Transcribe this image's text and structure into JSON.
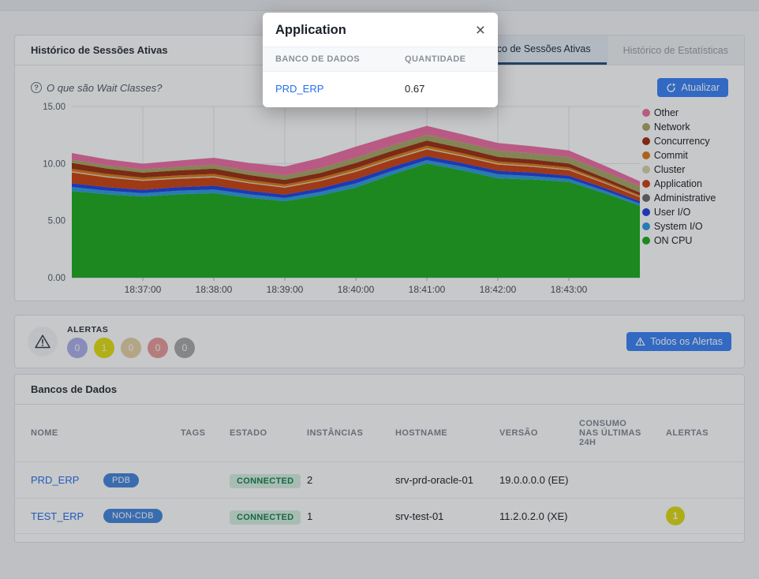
{
  "modal": {
    "title": "Application",
    "close_icon": "×",
    "columns": [
      "BANCO DE DADOS",
      "QUANTIDADE"
    ],
    "rows": [
      {
        "name": "PRD_ERP",
        "value": "0.67"
      }
    ]
  },
  "chart_card": {
    "title": "Histórico de Sessões Ativas",
    "tabs": [
      {
        "label": "Histórico de Sessões Ativas",
        "active": true
      },
      {
        "label": "Histórico de Estatísticas",
        "active": false
      }
    ],
    "help_link": "O que são Wait Classes?",
    "help_icon": "?",
    "refresh_button": "Atualizar"
  },
  "chart_data": {
    "type": "area",
    "stacked": true,
    "ylim": [
      0,
      15
    ],
    "y_tick_values": [
      0,
      5,
      10,
      15
    ],
    "y_tick_labels": [
      "0.00",
      "5.00",
      "10.00",
      "15.00"
    ],
    "x": [
      "18:36:00",
      "18:36:30",
      "18:37:00",
      "18:37:30",
      "18:38:00",
      "18:38:30",
      "18:39:00",
      "18:39:30",
      "18:40:00",
      "18:40:30",
      "18:41:00",
      "18:41:30",
      "18:42:00",
      "18:42:30",
      "18:43:00",
      "18:43:30",
      "18:44:00"
    ],
    "x_tick_labels": [
      "18:37:00",
      "18:38:00",
      "18:39:00",
      "18:40:00",
      "18:41:00",
      "18:42:00",
      "18:43:00"
    ],
    "x_tick_indices": [
      2,
      4,
      6,
      8,
      10,
      12,
      14
    ],
    "legend_position": "right",
    "series": [
      {
        "name": "ON CPU",
        "color": "#1fab1f",
        "values": [
          7.6,
          7.3,
          7.1,
          7.3,
          7.4,
          7.0,
          6.7,
          7.2,
          7.9,
          9.0,
          10.0,
          9.4,
          8.7,
          8.6,
          8.4,
          7.4,
          6.3
        ]
      },
      {
        "name": "System I/O",
        "color": "#2e9be0",
        "values": [
          0.35,
          0.32,
          0.3,
          0.32,
          0.33,
          0.3,
          0.28,
          0.32,
          0.36,
          0.33,
          0.3,
          0.33,
          0.36,
          0.3,
          0.26,
          0.23,
          0.2
        ]
      },
      {
        "name": "User I/O",
        "color": "#2244e0",
        "values": [
          0.32,
          0.31,
          0.3,
          0.31,
          0.33,
          0.31,
          0.29,
          0.32,
          0.36,
          0.35,
          0.34,
          0.32,
          0.31,
          0.3,
          0.28,
          0.24,
          0.2
        ]
      },
      {
        "name": "Administrative",
        "color": "#6c6c6c",
        "values": [
          0,
          0,
          0,
          0,
          0,
          0,
          0,
          0,
          0,
          0,
          0,
          0,
          0,
          0,
          0,
          0,
          0
        ]
      },
      {
        "name": "Application",
        "color": "#cc4413",
        "values": [
          0.95,
          0.85,
          0.78,
          0.74,
          0.72,
          0.66,
          0.62,
          0.63,
          0.66,
          0.63,
          0.6,
          0.57,
          0.54,
          0.51,
          0.48,
          0.41,
          0.35
        ]
      },
      {
        "name": "Cluster",
        "color": "#d8d2ae",
        "values": [
          0.1,
          0.1,
          0.09,
          0.09,
          0.1,
          0.09,
          0.09,
          0.09,
          0.1,
          0.1,
          0.1,
          0.09,
          0.09,
          0.08,
          0.08,
          0.06,
          0.05
        ]
      },
      {
        "name": "Commit",
        "color": "#d97b17",
        "values": [
          0.22,
          0.21,
          0.2,
          0.2,
          0.21,
          0.2,
          0.19,
          0.2,
          0.22,
          0.22,
          0.22,
          0.2,
          0.19,
          0.18,
          0.17,
          0.14,
          0.12
        ]
      },
      {
        "name": "Concurrency",
        "color": "#9c3012",
        "values": [
          0.52,
          0.47,
          0.43,
          0.44,
          0.46,
          0.43,
          0.4,
          0.42,
          0.46,
          0.46,
          0.46,
          0.43,
          0.4,
          0.37,
          0.34,
          0.28,
          0.24
        ]
      },
      {
        "name": "Network",
        "color": "#a8a865",
        "values": [
          0.28,
          0.28,
          0.29,
          0.31,
          0.34,
          0.36,
          0.39,
          0.43,
          0.46,
          0.48,
          0.5,
          0.52,
          0.55,
          0.55,
          0.55,
          0.56,
          0.56
        ]
      },
      {
        "name": "Other",
        "color": "#ed6fa4",
        "values": [
          0.58,
          0.53,
          0.5,
          0.55,
          0.62,
          0.7,
          0.78,
          0.88,
          0.96,
          0.86,
          0.78,
          0.71,
          0.66,
          0.62,
          0.58,
          0.5,
          0.42
        ]
      }
    ]
  },
  "alerts_card": {
    "label": "ALERTAS",
    "badges": [
      {
        "count": "0",
        "color": "#aeb0ea"
      },
      {
        "count": "1",
        "color": "#e3df13"
      },
      {
        "count": "0",
        "color": "#e6d2a8"
      },
      {
        "count": "0",
        "color": "#e89c9c"
      },
      {
        "count": "0",
        "color": "#a9a9a9"
      }
    ],
    "button": "Todos os Alertas"
  },
  "db_card": {
    "title": "Bancos de Dados",
    "columns": [
      "NOME",
      "TAGS",
      "ESTADO",
      "INSTÂNCIAS",
      "HOSTNAME",
      "VERSÃO",
      "CONSUMO NAS ÚLTIMAS 24H",
      "ALERTAS"
    ],
    "rows": [
      {
        "name": "PRD_ERP",
        "tag": "PDB",
        "estado": "CONNECTED",
        "instancias": "2",
        "hostname": "srv-prd-oracle-01",
        "versao": "19.0.0.0.0 (EE)",
        "consumo": "",
        "alertas": ""
      },
      {
        "name": "TEST_ERP",
        "tag": "NON-CDB",
        "estado": "CONNECTED",
        "instancias": "1",
        "hostname": "srv-test-01",
        "versao": "11.2.0.2.0 (XE)",
        "consumo": "",
        "alertas": "1"
      }
    ]
  },
  "colors": {
    "accent_blue": "#3b82f6",
    "link_blue": "#2570eb",
    "connected_bg": "#d7efe2",
    "connected_text": "#17824b",
    "tag_bg": "#4587dc",
    "row_alert_yellow": "#e0dc14"
  }
}
